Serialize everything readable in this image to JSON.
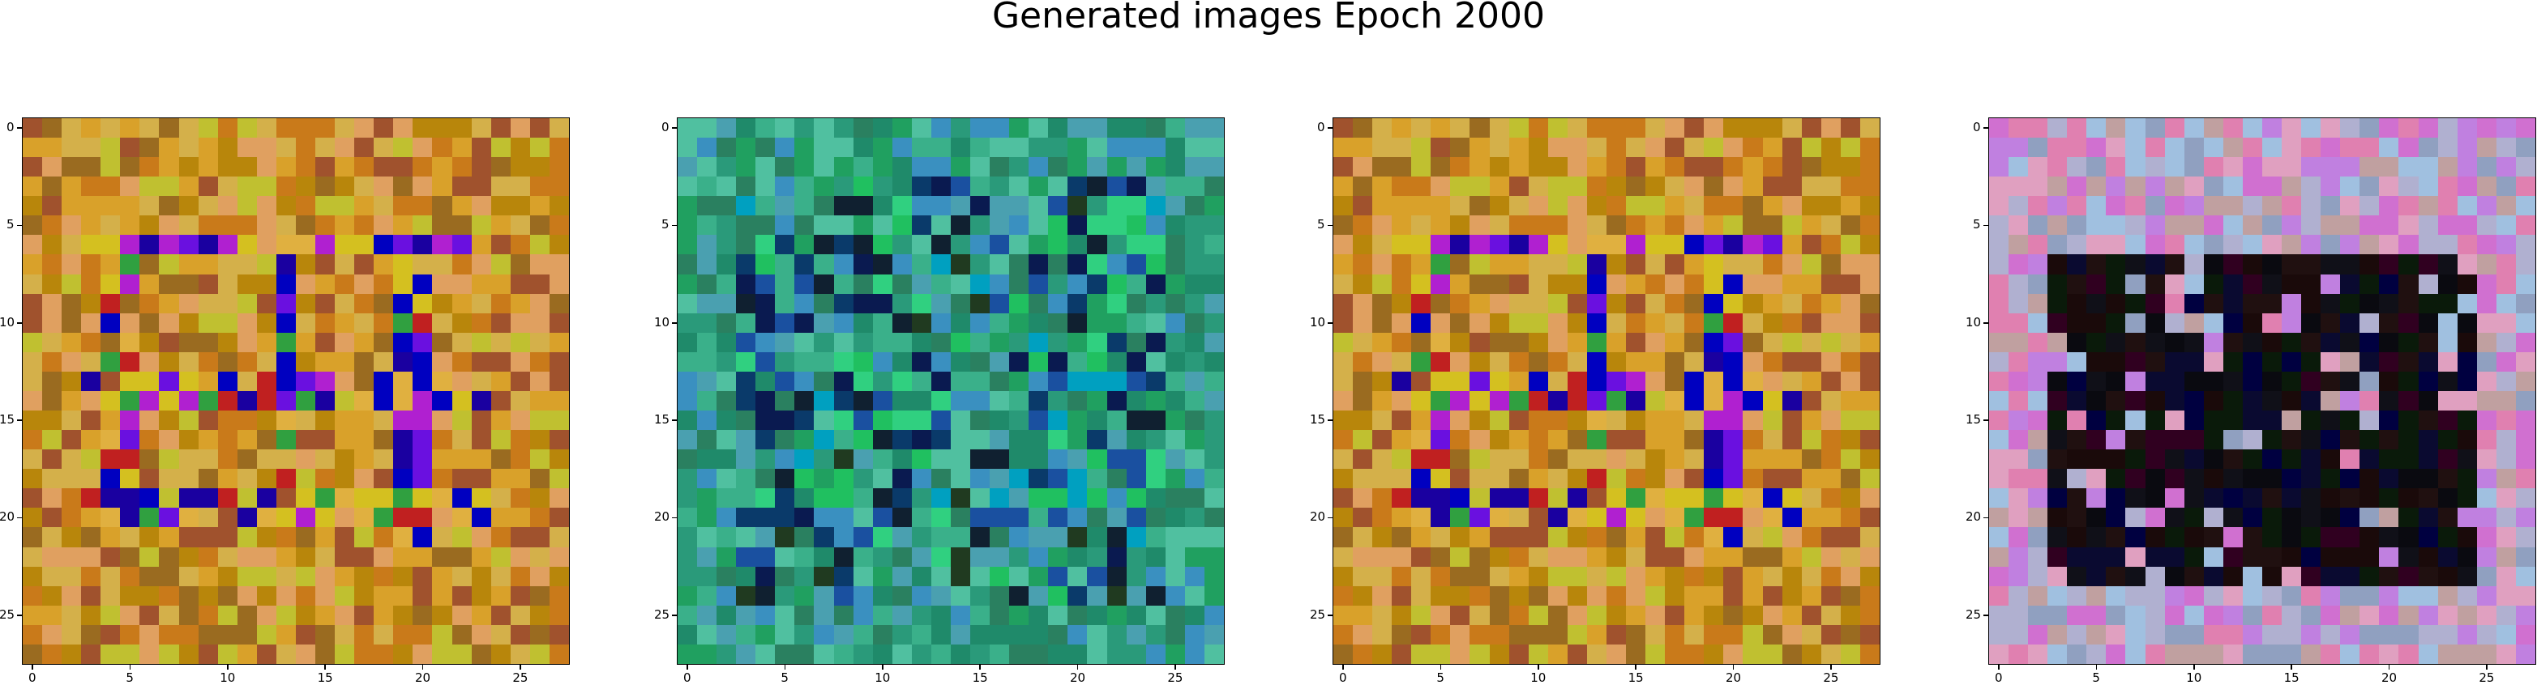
{
  "figure": {
    "title": "Generated images Epoch 2000",
    "grid_size": 28,
    "tick_values": [
      "0",
      "5",
      "10",
      "15",
      "20",
      "25"
    ]
  },
  "panels": [
    {
      "id": "sample-1",
      "style": "warm-orange",
      "palette": [
        "#c97a1a",
        "#d9a12a",
        "#b8860b",
        "#a0522d",
        "#d4b04a",
        "#c0c030",
        "#e0a060",
        "#9a6b20"
      ],
      "inner_palette": [
        "#1a00a0",
        "#6a10e0",
        "#b020d0",
        "#30a040",
        "#d4c020",
        "#c02020",
        "#e0b040",
        "#0000c0"
      ]
    },
    {
      "id": "sample-2",
      "style": "teal-green",
      "palette": [
        "#2a9a7a",
        "#3ab08a",
        "#20a060",
        "#4aa0b0",
        "#1f8a6a",
        "#50c0a0",
        "#3a90c0",
        "#2a8060"
      ],
      "inner_palette": [
        "#0a1a50",
        "#102030",
        "#20c060",
        "#1a50a0",
        "#00a0c0",
        "#30d080",
        "#203a20",
        "#0a3a6a"
      ]
    },
    {
      "id": "sample-3",
      "style": "warm-orange",
      "palette": [
        "#c97a1a",
        "#d9a12a",
        "#b8860b",
        "#a0522d",
        "#d4b04a",
        "#c0c030",
        "#e0a060",
        "#9a6b20"
      ],
      "inner_palette": [
        "#1a00a0",
        "#6a10e0",
        "#b020d0",
        "#30a040",
        "#d4c020",
        "#c02020",
        "#e0b040",
        "#0000c0"
      ]
    },
    {
      "id": "sample-4",
      "style": "pastel-dark-center",
      "palette": [
        "#c080e0",
        "#e0a0c0",
        "#a0c0e0",
        "#d070d0",
        "#b0b0d0",
        "#e080b0",
        "#90a0c0",
        "#c0a0a0"
      ],
      "inner_palette": [
        "#0a0a10",
        "#101018",
        "#1a0a0a",
        "#0a1a0a",
        "#000040",
        "#201010",
        "#300020",
        "#0a0a30"
      ]
    }
  ]
}
